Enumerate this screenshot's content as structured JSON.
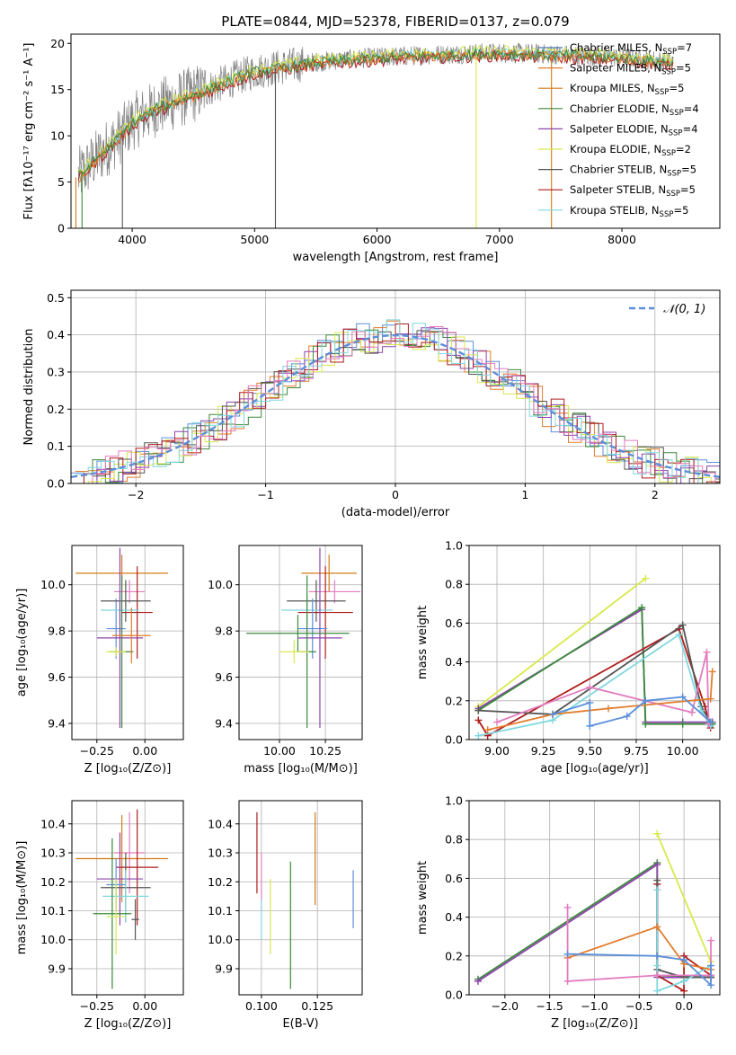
{
  "title": "PLATE=0844, MJD=52378, FIBERID=0137, z=0.079",
  "colors": {
    "Chabrier MILES": "#4c72b0",
    "Salpeter MILES": "#e27c2c",
    "Kroupa MILES": "#d47a14",
    "Chabrier ELODIE": "#3a8a3a",
    "Salpeter ELODIE": "#8e44ad",
    "Kroupa ELODIE": "#d8e84a",
    "Chabrier STELIB": "#555555",
    "Salpeter STELIB": "#b01c1c",
    "Kroupa STELIB": "#7fd8df",
    "blue": "#5b8fd9",
    "pink": "#e37cbf",
    "gray_spectrum": "#808080"
  },
  "chart_data": [
    {
      "type": "line",
      "xlabel": "wavelength [Angstrom, rest frame]",
      "ylabel": "Flux [fλ10⁻¹⁷ erg cm⁻² s⁻¹ A⁻¹]",
      "xlim": [
        3500,
        8800
      ],
      "ylim": [
        0,
        21
      ],
      "xticks": [
        "4000",
        "5000",
        "6000",
        "7000",
        "8000"
      ],
      "xtick_values": [
        4000,
        5000,
        6000,
        7000,
        8000
      ],
      "yticks": [
        "0",
        "5",
        "10",
        "15",
        "20"
      ],
      "ytick_values": [
        0,
        5,
        10,
        15,
        20
      ],
      "legend_position": "upper-right",
      "legend": [
        {
          "label": "Chabrier MILES, N",
          "sub": "SSP",
          "tail": "=7"
        },
        {
          "label": "Salpeter MILES, N",
          "sub": "SSP",
          "tail": "=5"
        },
        {
          "label": "Kroupa MILES, N",
          "sub": "SSP",
          "tail": "=5"
        },
        {
          "label": "Chabrier ELODIE, N",
          "sub": "SSP",
          "tail": "=4"
        },
        {
          "label": "Salpeter ELODIE, N",
          "sub": "SSP",
          "tail": "=4"
        },
        {
          "label": "Kroupa ELODIE, N",
          "sub": "SSP",
          "tail": "=2"
        },
        {
          "label": "Chabrier STELIB, N",
          "sub": "SSP",
          "tail": "=5"
        },
        {
          "label": "Salpeter STELIB, N",
          "sub": "SSP",
          "tail": "=5"
        },
        {
          "label": "Kroupa STELIB, N",
          "sub": "SSP",
          "tail": "=5"
        }
      ],
      "continuum": {
        "x": [
          3550,
          3700,
          3900,
          4000,
          4200,
          4500,
          4800,
          5000,
          5500,
          6000,
          6500,
          7000,
          7500,
          8000,
          8400
        ],
        "y": [
          5.5,
          7.5,
          10,
          11.5,
          13,
          14.5,
          16,
          17,
          18,
          18.5,
          18.8,
          19,
          18.8,
          18.5,
          18
        ]
      }
    },
    {
      "type": "histogram",
      "xlabel": "(data-model)/error",
      "ylabel": "Normed distribution",
      "xlim": [
        -2.5,
        2.5
      ],
      "ylim": [
        0,
        0.52
      ],
      "xticks": [
        "−2",
        "−1",
        "0",
        "1",
        "2"
      ],
      "xtick_values": [
        -2,
        -1,
        0,
        1,
        2
      ],
      "yticks": [
        "0.0",
        "0.1",
        "0.2",
        "0.3",
        "0.4",
        "0.5"
      ],
      "ytick_values": [
        0,
        0.1,
        0.2,
        0.3,
        0.4,
        0.5
      ],
      "grid": true,
      "legend": "𝒩(0, 1)",
      "legend_position": "upper-right",
      "curve": "normal pdf, mean 0, sigma 1"
    },
    {
      "type": "errorbar",
      "xlabel": "Z [log₁₀(Z/Z⊙)]",
      "ylabel": "age  [log₁₀(age/yr)]",
      "xlim": [
        -0.38,
        0.2
      ],
      "ylim": [
        9.33,
        10.17
      ],
      "xticks": [
        "−0.25",
        "0.00"
      ],
      "xtick_values": [
        -0.25,
        0.0
      ],
      "yticks": [
        "9.4",
        "9.6",
        "9.8",
        "10.0"
      ],
      "ytick_values": [
        9.4,
        9.6,
        9.8,
        10.0
      ],
      "grid": true,
      "points": [
        {
          "x": -0.12,
          "xerr": 0.24,
          "y": 10.05,
          "yerr": 0.08,
          "c": "Kroupa MILES"
        },
        {
          "x": -0.15,
          "xerr": 0.05,
          "y": 9.81,
          "yerr": 0.13,
          "c": "blue"
        },
        {
          "x": -0.08,
          "xerr": 0.08,
          "y": 9.97,
          "yerr": 0.05,
          "c": "pink"
        },
        {
          "x": -0.04,
          "xerr": 0.08,
          "y": 9.88,
          "yerr": 0.2,
          "c": "Salpeter STELIB"
        },
        {
          "x": -0.1,
          "xerr": 0.13,
          "y": 9.93,
          "yerr": 0.09,
          "c": "Chabrier STELIB"
        },
        {
          "x": -0.13,
          "xerr": 0.1,
          "y": 9.89,
          "yerr": 0.06,
          "c": "Kroupa STELIB"
        },
        {
          "x": -0.13,
          "xerr": 0.12,
          "y": 9.77,
          "yerr": 0.39,
          "c": "Salpeter ELODIE"
        },
        {
          "x": -0.12,
          "xerr": 0.06,
          "y": 9.71,
          "yerr": 0.33,
          "c": "Chabrier ELODIE"
        },
        {
          "x": -0.15,
          "xerr": 0.05,
          "y": 9.71,
          "yerr": 0.02,
          "c": "Kroupa ELODIE"
        },
        {
          "x": -0.07,
          "xerr": 0.1,
          "y": 9.78,
          "yerr": 0.12,
          "c": "Salpeter MILES"
        }
      ]
    },
    {
      "type": "errorbar",
      "xlabel": "mass [log₁₀(M/M⊙)]",
      "ylabel": "",
      "xlim": [
        9.78,
        10.45
      ],
      "ylim": [
        9.33,
        10.17
      ],
      "xticks": [
        "10.00",
        "10.25"
      ],
      "xtick_values": [
        10.0,
        10.25
      ],
      "yticks": [
        "9.4",
        "9.6",
        "9.8",
        "10.0"
      ],
      "ytick_values": [
        9.4,
        9.6,
        9.8,
        10.0
      ],
      "grid": true,
      "points": [
        {
          "x": 10.27,
          "xerr": 0.15,
          "y": 10.05,
          "yerr": 0.08,
          "c": "Kroupa MILES"
        },
        {
          "x": 10.3,
          "xerr": 0.14,
          "y": 9.97,
          "yerr": 0.05,
          "c": "pink"
        },
        {
          "x": 10.2,
          "xerr": 0.16,
          "y": 9.93,
          "yerr": 0.09,
          "c": "Chabrier STELIB"
        },
        {
          "x": 10.25,
          "xerr": 0.15,
          "y": 9.88,
          "yerr": 0.2,
          "c": "Salpeter STELIB"
        },
        {
          "x": 10.15,
          "xerr": 0.14,
          "y": 9.89,
          "yerr": 0.06,
          "c": "Kroupa STELIB"
        },
        {
          "x": 10.18,
          "xerr": 0.08,
          "y": 9.81,
          "yerr": 0.13,
          "c": "blue"
        },
        {
          "x": 10.1,
          "xerr": 0.28,
          "y": 9.79,
          "yerr": 0.08,
          "c": "Chabrier ELODIE"
        },
        {
          "x": 10.22,
          "xerr": 0.12,
          "y": 9.77,
          "yerr": 0.39,
          "c": "Salpeter ELODIE"
        },
        {
          "x": 10.15,
          "xerr": 0.05,
          "y": 9.71,
          "yerr": 0.33,
          "c": "Chabrier ELODIE"
        },
        {
          "x": 10.08,
          "xerr": 0.08,
          "y": 9.71,
          "yerr": 0.05,
          "c": "Kroupa ELODIE"
        }
      ]
    },
    {
      "type": "line",
      "xlabel": "age  [log₁₀(age/yr)]",
      "ylabel": "mass weight",
      "xlim": [
        8.85,
        10.2
      ],
      "ylim": [
        0,
        1.0
      ],
      "xticks": [
        "9.00",
        "9.25",
        "9.50",
        "9.75",
        "10.00"
      ],
      "xtick_values": [
        9.0,
        9.25,
        9.5,
        9.75,
        10.0
      ],
      "yticks": [
        "0.0",
        "0.2",
        "0.4",
        "0.6",
        "0.8",
        "1.0"
      ],
      "ytick_values": [
        0,
        0.2,
        0.4,
        0.6,
        0.8,
        1.0
      ],
      "grid": true,
      "series": [
        {
          "c": "Kroupa ELODIE",
          "x": [
            8.9,
            9.8
          ],
          "y": [
            0.17,
            0.83
          ]
        },
        {
          "c": "Salpeter ELODIE",
          "x": [
            8.9,
            9.78,
            9.8,
            10.0,
            10.16
          ],
          "y": [
            0.16,
            0.67,
            0.09,
            0.09,
            0.09
          ]
        },
        {
          "c": "Chabrier ELODIE",
          "x": [
            8.9,
            9.78,
            9.8,
            10.0,
            10.16
          ],
          "y": [
            0.15,
            0.68,
            0.08,
            0.08,
            0.08
          ]
        },
        {
          "c": "Salpeter STELIB",
          "x": [
            8.9,
            8.95,
            9.98,
            10.12,
            10.15
          ],
          "y": [
            0.1,
            0.02,
            0.57,
            0.17,
            0.06
          ]
        },
        {
          "c": "Chabrier STELIB",
          "x": [
            8.9,
            9.3,
            10.0,
            10.1,
            10.15
          ],
          "y": [
            0.15,
            0.13,
            0.59,
            0.17,
            0.09
          ]
        },
        {
          "c": "Kroupa STELIB",
          "x": [
            8.9,
            9.3,
            9.98,
            10.1,
            10.15
          ],
          "y": [
            0.02,
            0.1,
            0.54,
            0.15,
            0.07
          ]
        },
        {
          "c": "pink",
          "x": [
            9.0,
            9.5,
            10.05,
            10.13,
            10.14
          ],
          "y": [
            0.09,
            0.27,
            0.14,
            0.45,
            0.08
          ]
        },
        {
          "c": "Salpeter MILES",
          "x": [
            8.95,
            9.3,
            9.6,
            10.15,
            10.16
          ],
          "y": [
            0.05,
            0.13,
            0.16,
            0.21,
            0.35
          ]
        },
        {
          "c": "blue",
          "x": [
            9.3,
            9.5,
            9.5,
            9.7,
            9.8,
            10.0,
            10.15
          ],
          "y": [
            0.13,
            0.19,
            0.07,
            0.12,
            0.2,
            0.22,
            0.09
          ]
        }
      ]
    },
    {
      "type": "errorbar",
      "xlabel": "Z [log₁₀(Z/Z⊙)]",
      "ylabel": "mass [log₁₀(M/M⊙)]",
      "xlim": [
        -0.38,
        0.2
      ],
      "ylim": [
        9.81,
        10.48
      ],
      "xticks": [
        "−0.25",
        "0.00"
      ],
      "xtick_values": [
        -0.25,
        0.0
      ],
      "yticks": [
        "9.9",
        "10.0",
        "10.1",
        "10.2",
        "10.3",
        "10.4"
      ],
      "ytick_values": [
        9.9,
        10.0,
        10.1,
        10.2,
        10.3,
        10.4
      ],
      "grid": true,
      "points": [
        {
          "x": -0.08,
          "xerr": 0.08,
          "y": 10.3,
          "yerr": 0.14,
          "c": "pink"
        },
        {
          "x": -0.12,
          "xerr": 0.24,
          "y": 10.28,
          "yerr": 0.15,
          "c": "Kroupa MILES"
        },
        {
          "x": -0.04,
          "xerr": 0.11,
          "y": 10.25,
          "yerr": 0.2,
          "c": "Salpeter STELIB"
        },
        {
          "x": -0.13,
          "xerr": 0.12,
          "y": 10.21,
          "yerr": 0.16,
          "c": "Salpeter ELODIE"
        },
        {
          "x": -0.1,
          "xerr": 0.13,
          "y": 10.18,
          "yerr": 0.12,
          "c": "Chabrier STELIB"
        },
        {
          "x": -0.15,
          "xerr": 0.05,
          "y": 10.19,
          "yerr": 0.09,
          "c": "blue"
        },
        {
          "x": -0.1,
          "xerr": 0.12,
          "y": 10.15,
          "yerr": 0.09,
          "c": "Kroupa STELIB"
        },
        {
          "x": -0.17,
          "xerr": 0.1,
          "y": 10.09,
          "yerr": 0.26,
          "c": "Chabrier ELODIE"
        },
        {
          "x": -0.15,
          "xerr": 0.05,
          "y": 10.08,
          "yerr": 0.13,
          "c": "Kroupa ELODIE"
        },
        {
          "x": -0.05,
          "xerr": 0.02,
          "y": 10.07,
          "yerr": 0.07,
          "c": "Chabrier STELIB"
        }
      ]
    },
    {
      "type": "errorbar",
      "xlabel": "E(B-V)",
      "ylabel": "",
      "xlim": [
        0.09,
        0.145
      ],
      "ylim": [
        9.81,
        10.48
      ],
      "xticks": [
        "0.100",
        "0.125"
      ],
      "xtick_values": [
        0.1,
        0.125
      ],
      "yticks": [
        "9.9",
        "10.0",
        "10.1",
        "10.2",
        "10.3",
        "10.4"
      ],
      "ytick_values": [
        9.9,
        10.0,
        10.1,
        10.2,
        10.3,
        10.4
      ],
      "grid": true,
      "points": [
        {
          "x": 0.098,
          "xerr": 0,
          "y": 10.3,
          "yerr": 0.14,
          "c": "Salpeter STELIB"
        },
        {
          "x": 0.1,
          "xerr": 0,
          "y": 10.2,
          "yerr": 0.1,
          "c": "pink"
        },
        {
          "x": 0.1,
          "xerr": 0,
          "y": 10.07,
          "yerr": 0.07,
          "c": "Kroupa STELIB"
        },
        {
          "x": 0.104,
          "xerr": 0,
          "y": 10.08,
          "yerr": 0.13,
          "c": "Kroupa ELODIE"
        },
        {
          "x": 0.113,
          "xerr": 0,
          "y": 10.05,
          "yerr": 0.22,
          "c": "Chabrier ELODIE"
        },
        {
          "x": 0.124,
          "xerr": 0,
          "y": 10.28,
          "yerr": 0.16,
          "c": "Kroupa MILES"
        },
        {
          "x": 0.141,
          "xerr": 0,
          "y": 10.14,
          "yerr": 0.1,
          "c": "blue"
        }
      ]
    },
    {
      "type": "line",
      "xlabel": "Z [log₁₀(Z/Z⊙)]",
      "ylabel": "mass weight",
      "xlim": [
        -2.4,
        0.4
      ],
      "ylim": [
        0,
        1.0
      ],
      "xticks": [
        "−2.0",
        "−1.5",
        "−1.0",
        "−0.5",
        "0.0"
      ],
      "xtick_values": [
        -2.0,
        -1.5,
        -1.0,
        -0.5,
        0.0
      ],
      "yticks": [
        "0.0",
        "0.2",
        "0.4",
        "0.6",
        "0.8",
        "1.0"
      ],
      "ytick_values": [
        0,
        0.2,
        0.4,
        0.6,
        0.8,
        1.0
      ],
      "grid": true,
      "series": [
        {
          "c": "Kroupa ELODIE",
          "x": [
            -0.3,
            0.3
          ],
          "y": [
            0.83,
            0.17
          ]
        },
        {
          "c": "Chabrier ELODIE",
          "x": [
            -2.3,
            -0.3,
            -0.3,
            0.3
          ],
          "y": [
            0.08,
            0.68,
            0.1,
            0.09
          ]
        },
        {
          "c": "Salpeter ELODIE",
          "x": [
            -2.3,
            -0.3,
            -0.3,
            0.3
          ],
          "y": [
            0.07,
            0.67,
            0.09,
            0.09
          ]
        },
        {
          "c": "Salpeter STELIB",
          "x": [
            -0.3,
            -0.3,
            0.0,
            0.0,
            0.3
          ],
          "y": [
            0.57,
            0.1,
            0.02,
            0.2,
            0.1
          ]
        },
        {
          "c": "Chabrier STELIB",
          "x": [
            -0.3,
            -0.3,
            0.0,
            0.3
          ],
          "y": [
            0.59,
            0.13,
            0.09,
            0.09
          ]
        },
        {
          "c": "Kroupa STELIB",
          "x": [
            -0.3,
            -0.3,
            -0.3,
            0.0,
            0.3
          ],
          "y": [
            0.54,
            0.15,
            0.02,
            0.07,
            0.15
          ]
        },
        {
          "c": "Salpeter MILES",
          "x": [
            -1.3,
            -0.3,
            0.0,
            0.3
          ],
          "y": [
            0.19,
            0.35,
            0.16,
            0.13
          ]
        },
        {
          "c": "pink",
          "x": [
            -1.3,
            -1.3,
            -0.3,
            0.3,
            0.3
          ],
          "y": [
            0.45,
            0.07,
            0.1,
            0.1,
            0.28
          ]
        },
        {
          "c": "blue",
          "x": [
            -1.3,
            -0.3,
            0.0,
            0.3,
            0.3
          ],
          "y": [
            0.21,
            0.2,
            0.18,
            0.05,
            0.15
          ]
        }
      ]
    }
  ]
}
